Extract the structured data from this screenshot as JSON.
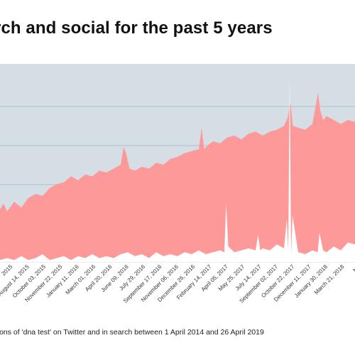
{
  "title": "rch and social for the past 5 years",
  "caption": "ntions of 'dna test' on Twitter and in search between 1 April 2014 and 26 April 2019",
  "colors": {
    "background_panel": "#d5dee5",
    "search_area": "#fe999a",
    "twitter_area": "#ffffff",
    "gridline": "#b3bfc8"
  },
  "chart_data": {
    "type": "area",
    "xlabel": "",
    "ylabel": "",
    "grid": true,
    "x_tick_labels": [
      "2015",
      "August 14, 2015",
      "October 03, 2015",
      "November 22, 2015",
      "January 11, 2016",
      "March 01, 2016",
      "April 20, 2016",
      "June 09, 2016",
      "July 29, 2016",
      "September 17, 2016",
      "November 06, 2016",
      "December 26, 2016",
      "February 14, 2017",
      "April 05, 2017",
      "May 25, 2017",
      "July 14, 2017",
      "September 02, 2017",
      "October 22, 2017",
      "December 11, 2017",
      "January 30, 2018",
      "March 21, 2018",
      "Ma"
    ],
    "x_range": [
      0,
      100
    ],
    "ylim": [
      0,
      100
    ],
    "series": [
      {
        "color": "#fe999a",
        "x": [
          0,
          1,
          2,
          4,
          6,
          8,
          10,
          12,
          14,
          16,
          18,
          20,
          22,
          24,
          26,
          28,
          30,
          32,
          34,
          34.8,
          35.5,
          36.5,
          38,
          40,
          42,
          44,
          46,
          48,
          50,
          52,
          54,
          56,
          56.8,
          57.5,
          58.5,
          60,
          62,
          64,
          66,
          68,
          70,
          72,
          74,
          76,
          78,
          80,
          81,
          81.8,
          82.5,
          84,
          86,
          88,
          89.6,
          90.2,
          91,
          92,
          94,
          96,
          98,
          100
        ],
        "values": [
          27,
          30,
          26,
          31,
          28,
          33,
          35,
          34,
          38,
          40,
          41,
          44,
          42,
          45,
          44,
          47,
          46,
          48,
          50,
          59,
          56,
          48,
          47,
          49,
          48,
          51,
          50,
          53,
          54,
          56,
          57,
          58,
          69,
          58,
          60,
          62,
          61,
          64,
          65,
          63,
          66,
          67,
          65,
          67,
          68,
          70,
          74,
          82,
          70,
          69,
          68,
          71,
          87,
          78,
          73,
          75,
          73,
          71,
          73,
          72
        ]
      },
      {
        "color": "#ffffff",
        "x": [
          0,
          2,
          4,
          6,
          8,
          10,
          12,
          14,
          16,
          18,
          20,
          22,
          24,
          26,
          28,
          30,
          32,
          34,
          36,
          38,
          40,
          42,
          44,
          46,
          48,
          50,
          52,
          54,
          56,
          58,
          60,
          62,
          63.2,
          63.7,
          64.3,
          66,
          68,
          70,
          72,
          72.7,
          73.3,
          74,
          76,
          78,
          80,
          80.8,
          81.2,
          81.6,
          82,
          82.4,
          84,
          86,
          88,
          89.5,
          90,
          91,
          92,
          94,
          96,
          98,
          100
        ],
        "values": [
          1,
          2,
          1,
          3,
          1,
          2,
          4,
          1,
          2,
          3,
          1,
          3,
          2,
          4,
          2,
          3,
          2,
          4,
          5,
          3,
          4,
          2,
          5,
          3,
          4,
          3,
          5,
          4,
          6,
          4,
          5,
          6,
          5,
          30,
          8,
          5,
          6,
          7,
          6,
          14,
          6,
          7,
          6,
          9,
          7,
          22,
          6,
          97,
          4,
          24,
          5,
          4,
          6,
          5,
          15,
          6,
          5,
          8,
          6,
          10,
          9
        ]
      }
    ]
  }
}
